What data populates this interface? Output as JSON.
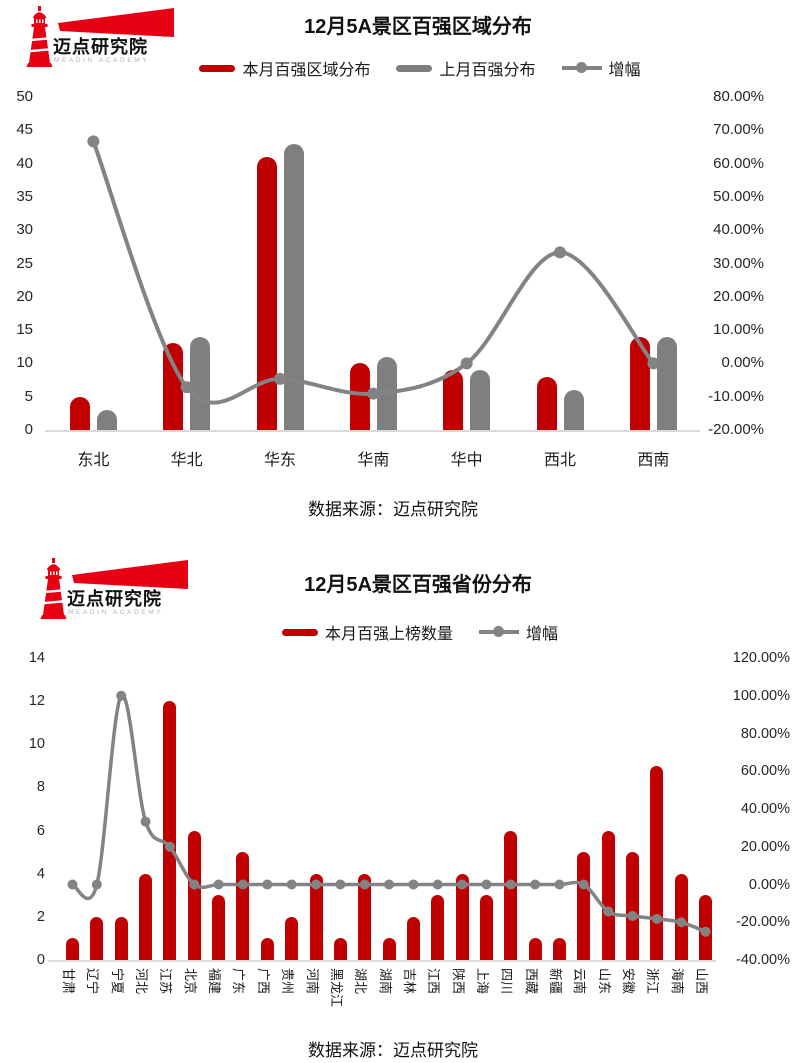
{
  "page": {
    "background": "#ffffff"
  },
  "logo": {
    "name": "迈点研究院",
    "subtitle": "MEADIN ACADEMY",
    "brand_color": "#e60012"
  },
  "colors": {
    "bar_current": "#c00000",
    "bar_previous": "#7f7f7f",
    "growth_line": "#838383",
    "baseline": "#d9d9d9"
  },
  "charts": [
    {
      "title": "12月5A景区百强区域分布",
      "source": "数据来源：迈点研究院",
      "legend": [
        {
          "type": "bar",
          "color": "#c00000",
          "label": "本月百强区域分布"
        },
        {
          "type": "bar",
          "color": "#7f7f7f",
          "label": "上月百强分布"
        },
        {
          "type": "line",
          "color": "#838383",
          "label": "增幅"
        }
      ],
      "chart_data": {
        "type": "bar",
        "subtype": "combo-bar-line",
        "categories": [
          "东北",
          "华北",
          "华东",
          "华南",
          "华中",
          "西北",
          "西南"
        ],
        "series": [
          {
            "name": "本月百强区域分布",
            "type": "bar",
            "color": "#c00000",
            "axis": "left",
            "values": [
              5,
              13,
              41,
              10,
              9,
              8,
              14
            ]
          },
          {
            "name": "上月百强分布",
            "type": "bar",
            "color": "#7f7f7f",
            "axis": "left",
            "values": [
              3,
              14,
              43,
              11,
              9,
              6,
              14
            ]
          },
          {
            "name": "增幅",
            "type": "line",
            "color": "#838383",
            "axis": "right",
            "values_pct": [
              66.67,
              -7.14,
              -4.65,
              -9.09,
              0,
              33.33,
              0
            ]
          }
        ],
        "left_axis": {
          "min": 0,
          "max": 50,
          "ticks": [
            "50",
            "45",
            "40",
            "35",
            "30",
            "25",
            "20",
            "15",
            "10",
            "5",
            "0"
          ]
        },
        "right_axis": {
          "min": -20,
          "max": 80,
          "ticks": [
            "80.00%",
            "70.00%",
            "60.00%",
            "50.00%",
            "40.00%",
            "30.00%",
            "20.00%",
            "10.00%",
            "0.00%",
            "-10.00%",
            "-20.00%"
          ]
        },
        "grid": false,
        "legend_position": "top",
        "line_smooth": true
      }
    },
    {
      "title": "12月5A景区百强省份分布",
      "source": "数据来源：迈点研究院",
      "legend": [
        {
          "type": "bar",
          "color": "#c00000",
          "label": "本月百强上榜数量"
        },
        {
          "type": "line",
          "color": "#838383",
          "label": "增幅"
        }
      ],
      "chart_data": {
        "type": "bar",
        "subtype": "combo-bar-line",
        "categories": [
          "甘肃",
          "辽宁",
          "宁夏",
          "河北",
          "江苏",
          "北京",
          "福建",
          "广东",
          "广西",
          "贵州",
          "河南",
          "黑龙江",
          "湖北",
          "湖南",
          "吉林",
          "江西",
          "陕西",
          "上海",
          "四川",
          "西藏",
          "新疆",
          "云南",
          "山东",
          "安徽",
          "浙江",
          "海南",
          "山西"
        ],
        "series": [
          {
            "name": "本月百强上榜数量",
            "type": "bar",
            "color": "#c00000",
            "axis": "left",
            "values": [
              1,
              2,
              2,
              4,
              12,
              6,
              3,
              5,
              1,
              2,
              4,
              1,
              4,
              1,
              2,
              3,
              4,
              3,
              6,
              1,
              1,
              5,
              6,
              5,
              9,
              4,
              3
            ]
          },
          {
            "name": "增幅",
            "type": "line",
            "color": "#838383",
            "axis": "right",
            "values_pct": [
              0,
              0,
              100,
              33.33,
              20,
              0,
              0,
              0,
              0,
              0,
              0,
              0,
              0,
              0,
              0,
              0,
              0,
              0,
              0,
              0,
              0,
              0,
              -14.29,
              -16.67,
              -18.18,
              -20,
              -25
            ]
          }
        ],
        "left_axis": {
          "min": 0,
          "max": 14,
          "ticks": [
            "14",
            "12",
            "10",
            "8",
            "6",
            "4",
            "2",
            "0"
          ]
        },
        "right_axis": {
          "min": -40,
          "max": 120,
          "ticks": [
            "120.00%",
            "100.00%",
            "80.00%",
            "60.00%",
            "40.00%",
            "20.00%",
            "0.00%",
            "-20.00%",
            "-40.00%"
          ]
        },
        "grid": false,
        "legend_position": "top",
        "line_smooth": true
      }
    }
  ]
}
